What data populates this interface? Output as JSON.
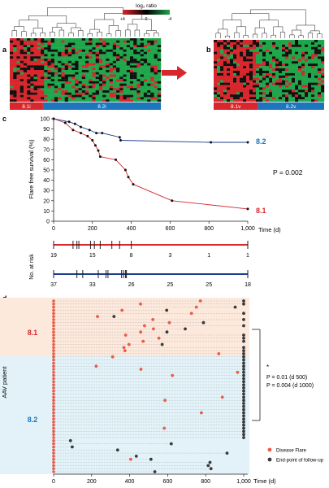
{
  "panel_labels": {
    "a": "a",
    "b": "b",
    "c": "c",
    "d": "d"
  },
  "panel_ab": {
    "colorbar_title": "log₂ ratio",
    "colorbar_ticks": [
      "+4",
      "0",
      "-4"
    ],
    "colors": {
      "red": "#d7262c",
      "green": "#1fa64a",
      "black": "#111111",
      "blue": "#1d75bc",
      "arrow": "#d7262c"
    },
    "heatmap_a": {
      "groups": [
        {
          "label": "8.1i",
          "fraction": 0.22
        },
        {
          "label": "8.2i",
          "fraction": 0.78
        }
      ]
    },
    "heatmap_b": {
      "groups": [
        {
          "label": "8.1v",
          "fraction": 0.4
        },
        {
          "label": "8.2v",
          "fraction": 0.6
        }
      ]
    }
  },
  "chart_data": [
    {
      "type": "line",
      "panel": "c",
      "ylabel": "Flare free survival (%)",
      "xlabel": "Time (d)",
      "xlim": [
        0,
        1000
      ],
      "ylim": [
        0,
        100
      ],
      "xticks": [
        "0",
        "200",
        "400",
        "600",
        "800",
        "1,000"
      ],
      "yticks": [
        "0",
        "10",
        "20",
        "30",
        "40",
        "50",
        "60",
        "70",
        "80",
        "90",
        "100"
      ],
      "annotation": "P = 0.002",
      "series": [
        {
          "name": "8.2",
          "color": "#1d3f8f",
          "label_color": "#1d75bc",
          "x": [
            0,
            80,
            110,
            140,
            185,
            220,
            250,
            340,
            345,
            810,
            1000
          ],
          "y": [
            100,
            97,
            95,
            92,
            89,
            86,
            86,
            82,
            79,
            77,
            77
          ]
        },
        {
          "name": "8.1",
          "color": "#d7262c",
          "label_color": "#d7262c",
          "x": [
            0,
            60,
            100,
            140,
            175,
            200,
            215,
            230,
            240,
            320,
            370,
            385,
            410,
            610,
            1000
          ],
          "y": [
            100,
            96,
            89,
            86,
            83,
            79,
            74,
            69,
            63,
            60,
            50,
            43,
            36,
            20,
            12
          ]
        }
      ],
      "at_risk": {
        "label": "No. at risk",
        "rows": [
          {
            "color": "#d7262c",
            "counts": [
              "19",
              "15",
              "8",
              "3",
              "1",
              "1"
            ],
            "censor_x": [
              100,
              120,
              130,
              190,
              210,
              240,
              300,
              340,
              400
            ]
          },
          {
            "color": "#1d3f8f",
            "counts": [
              "37",
              "33",
              "26",
              "25",
              "25",
              "18"
            ],
            "censor_x": [
              120,
              150,
              230,
              270,
              280,
              350,
              360,
              370,
              375
            ]
          }
        ]
      }
    },
    {
      "type": "scatter",
      "panel": "d",
      "ylabel": "AAV patient",
      "xlabel": "Time (d)",
      "xlim": [
        0,
        1000
      ],
      "xticks": [
        "0",
        "200",
        "400",
        "600",
        "800",
        "1,000"
      ],
      "groups": [
        {
          "label": "8.1",
          "color": "#d7262c",
          "bg": "#fde8dc"
        },
        {
          "label": "8.2",
          "color": "#1d75bc",
          "bg": "#e2f2f8"
        }
      ],
      "stat_lines": [
        "*",
        "P = 0.01 (d 500)",
        "P = 0.004 (d 1000)"
      ],
      "legend": [
        {
          "label": "Disease Flare",
          "color": "#e85c4a"
        },
        {
          "label": "End-point of follow-up",
          "color": "#3a3a3a"
        }
      ]
    }
  ]
}
